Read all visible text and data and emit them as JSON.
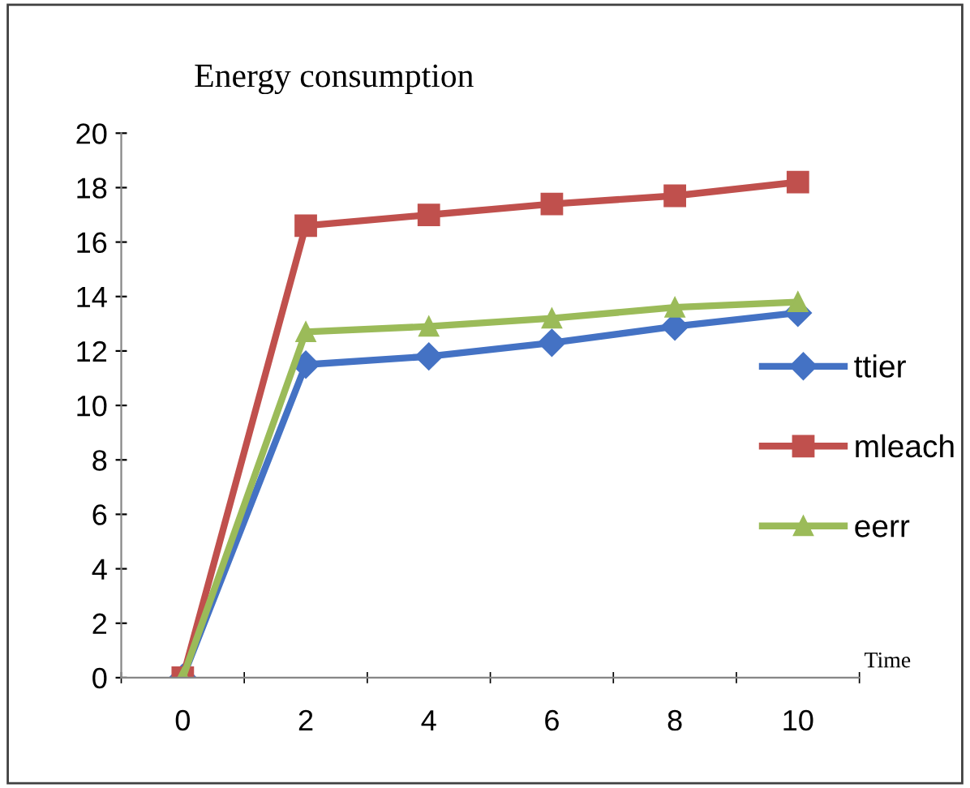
{
  "chart_data": {
    "type": "line",
    "title": "Energy consumption",
    "xlabel": "Time",
    "categories": [
      "0",
      "2",
      "4",
      "6",
      "8",
      "10"
    ],
    "series": [
      {
        "name": "ttier",
        "color": "#4472c4",
        "marker": "diamond",
        "values": [
          0,
          11.5,
          11.8,
          12.3,
          12.9,
          13.4
        ]
      },
      {
        "name": "mleach",
        "color": "#c0504d",
        "marker": "square",
        "values": [
          0,
          16.6,
          17.0,
          17.4,
          17.7,
          18.2
        ]
      },
      {
        "name": "eerr",
        "color": "#9bbb59",
        "marker": "triangle",
        "values": [
          0,
          12.7,
          12.9,
          13.2,
          13.6,
          13.8
        ]
      }
    ],
    "ylim": [
      0,
      20
    ],
    "yticks": [
      0,
      2,
      4,
      6,
      8,
      10,
      12,
      14,
      16,
      18,
      20
    ],
    "grid": false,
    "legend": "right",
    "line_style": "solid"
  }
}
